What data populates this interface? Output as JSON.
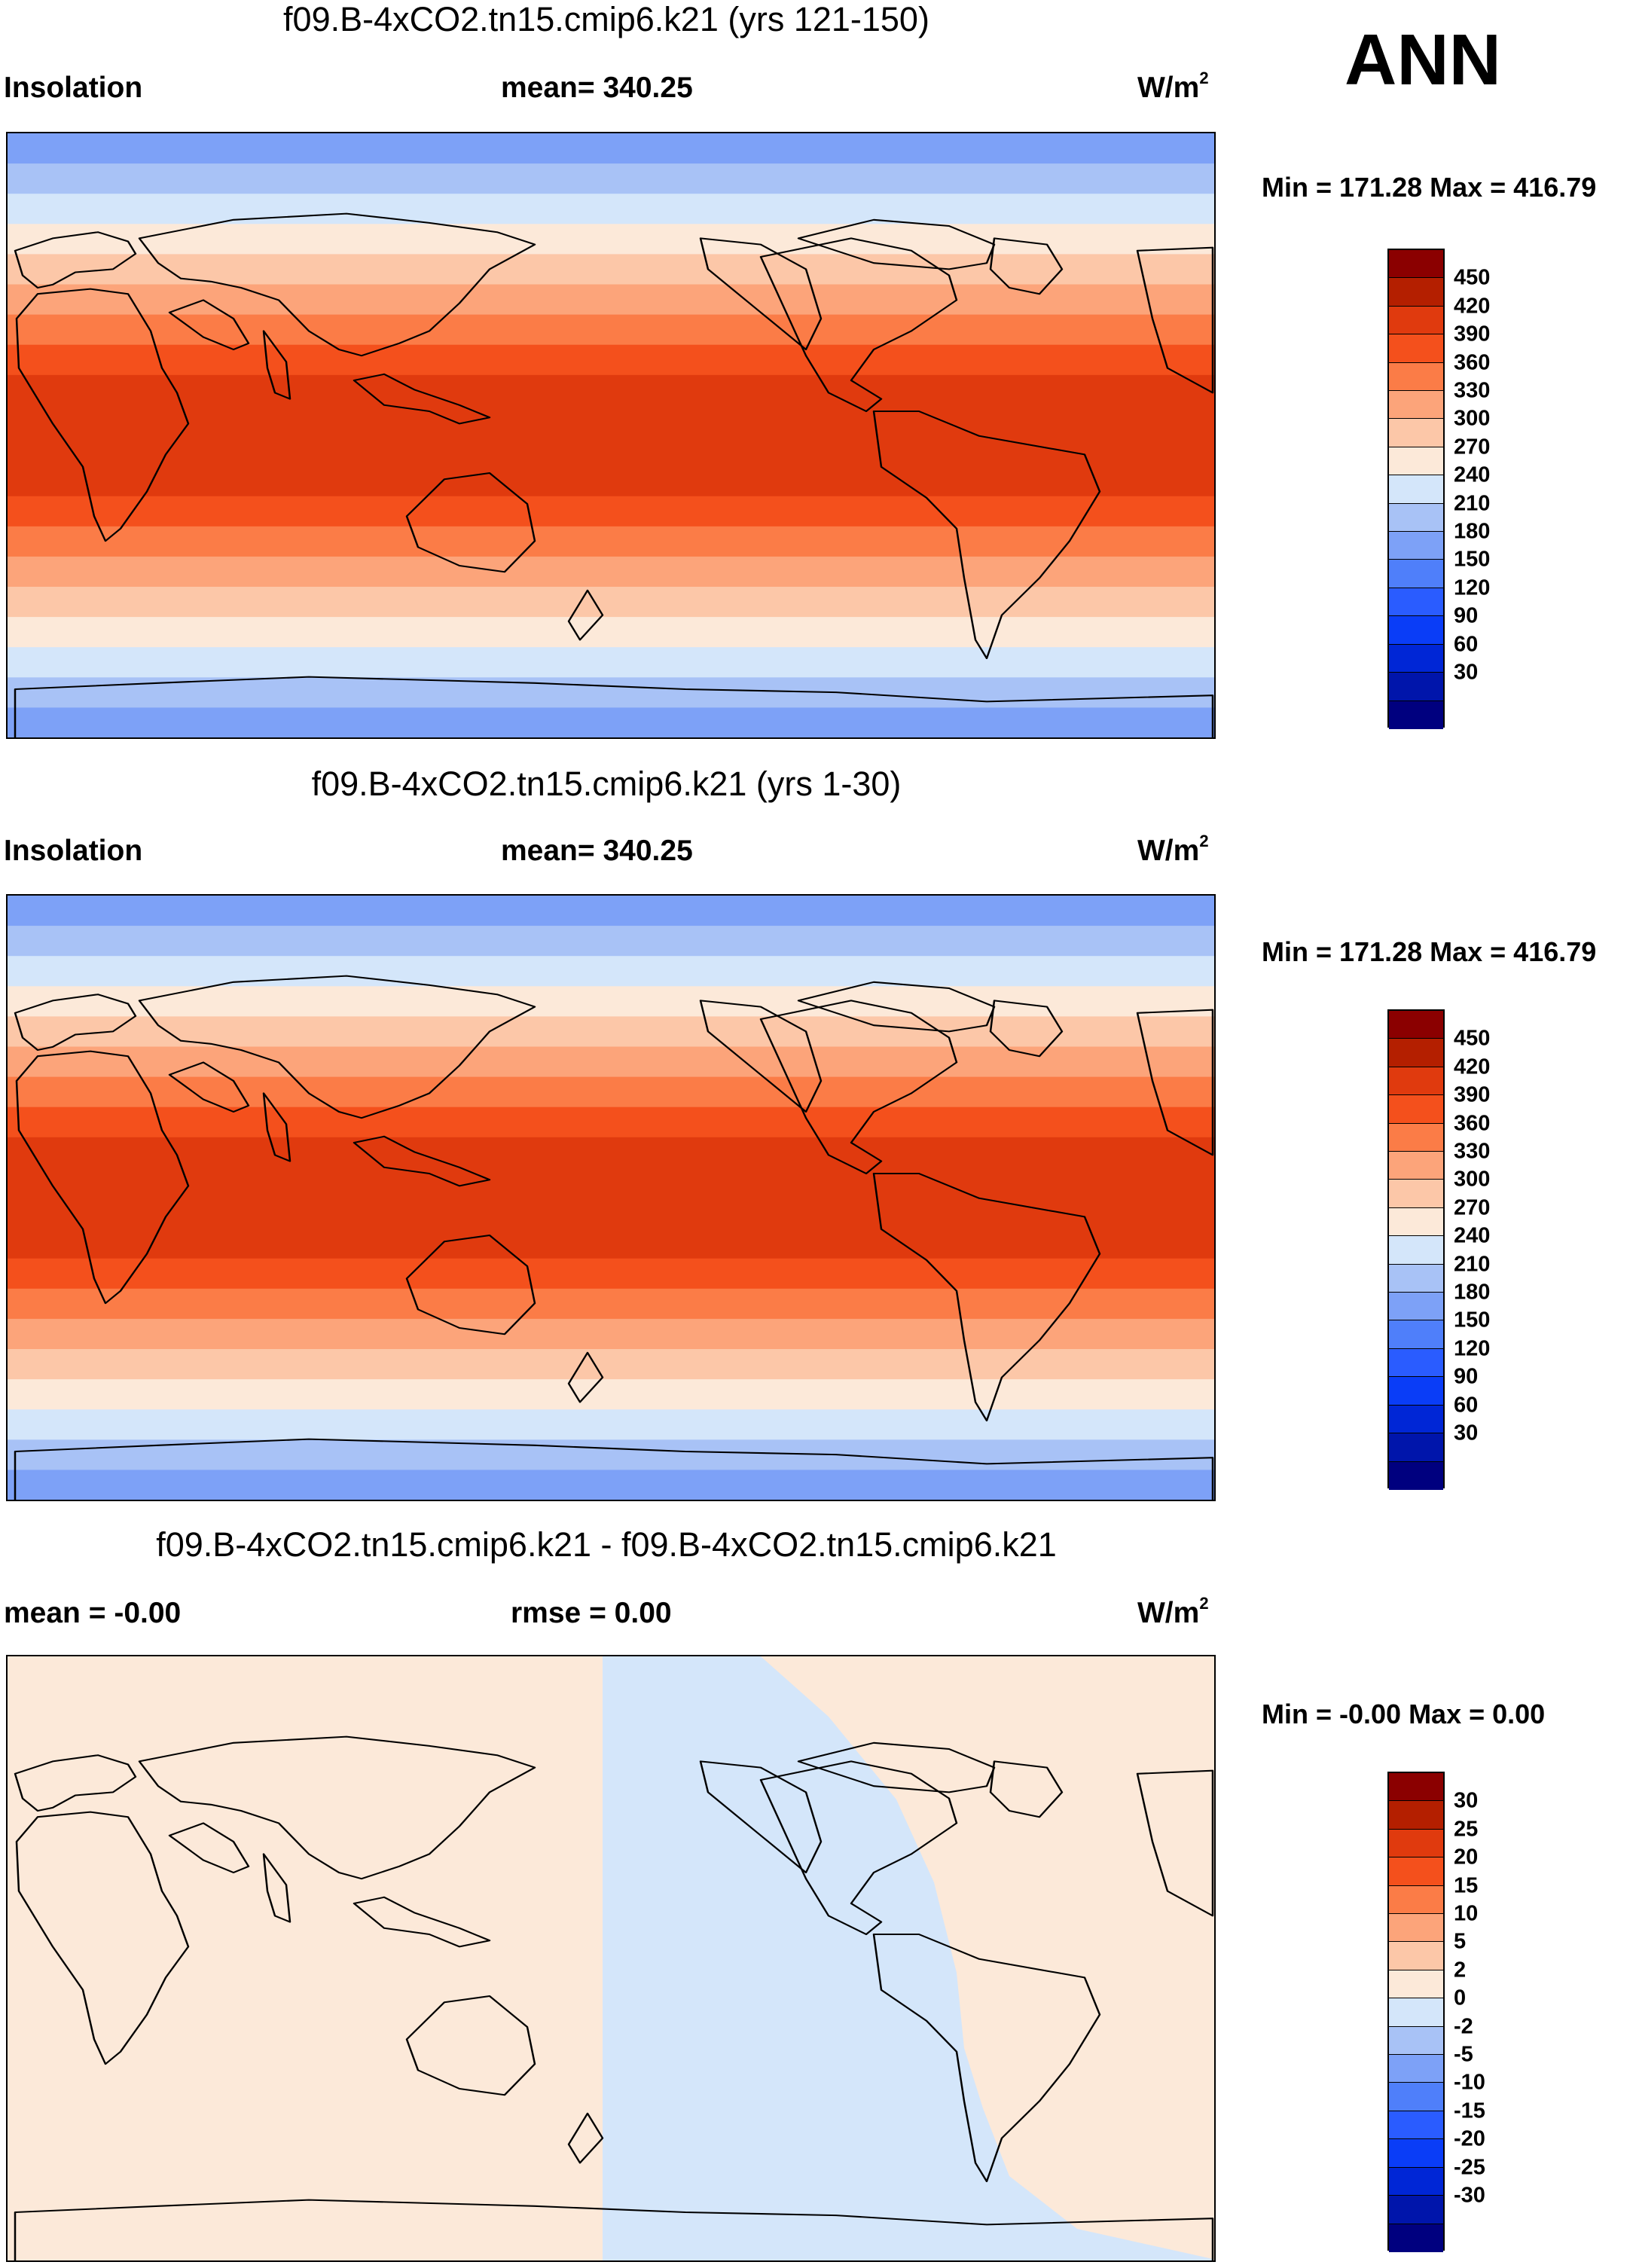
{
  "season": "ANN",
  "units_base": "W/m",
  "units_exp": "2",
  "colors": {
    "coast": "#000000",
    "insolation": [
      "#00007f",
      "#0015ab",
      "#0026d6",
      "#0a3df7",
      "#2a5cff",
      "#4f7ffa",
      "#7da1f7",
      "#a8c2f6",
      "#d4e6fa",
      "#fce9d9",
      "#fcc7a8",
      "#fca47a",
      "#fb7c47",
      "#f4501c",
      "#e03a0e",
      "#b41f00",
      "#8b0000"
    ],
    "diff": [
      "#00007f",
      "#0015ab",
      "#0026d6",
      "#0a3df7",
      "#2a5cff",
      "#4f7ffa",
      "#7da1f7",
      "#a8c2f6",
      "#d4e6fa",
      "#fce9d9",
      "#fcc7a8",
      "#fca47a",
      "#fb7c47",
      "#f4501c",
      "#e03a0e",
      "#b41f00",
      "#8b0000"
    ]
  },
  "panels": [
    {
      "title": "f09.B-4xCO2.tn15.cmip6.k21 (yrs 121-150)",
      "left_label": "Insolation",
      "center_label": "mean= 340.25",
      "minmax": "Min = 171.28 Max = 416.79",
      "colorbar_labels": [
        "450",
        "420",
        "390",
        "360",
        "330",
        "300",
        "270",
        "240",
        "210",
        "180",
        "150",
        "120",
        "90",
        "60",
        "30"
      ]
    },
    {
      "title": "f09.B-4xCO2.tn15.cmip6.k21 (yrs 1-30)",
      "left_label": "Insolation",
      "center_label": "mean= 340.25",
      "minmax": "Min = 171.28 Max = 416.79",
      "colorbar_labels": [
        "450",
        "420",
        "390",
        "360",
        "330",
        "300",
        "270",
        "240",
        "210",
        "180",
        "150",
        "120",
        "90",
        "60",
        "30"
      ]
    },
    {
      "title": "f09.B-4xCO2.tn15.cmip6.k21 - f09.B-4xCO2.tn15.cmip6.k21",
      "left_label": "mean =  -0.00",
      "center_label": "rmse =   0.00",
      "minmax": "Min =  -0.00 Max =   0.00",
      "colorbar_labels": [
        "30",
        "25",
        "20",
        "15",
        "10",
        "5",
        "2",
        "0",
        "-2",
        "-5",
        "-10",
        "-15",
        "-20",
        "-25",
        "-30"
      ]
    }
  ]
}
